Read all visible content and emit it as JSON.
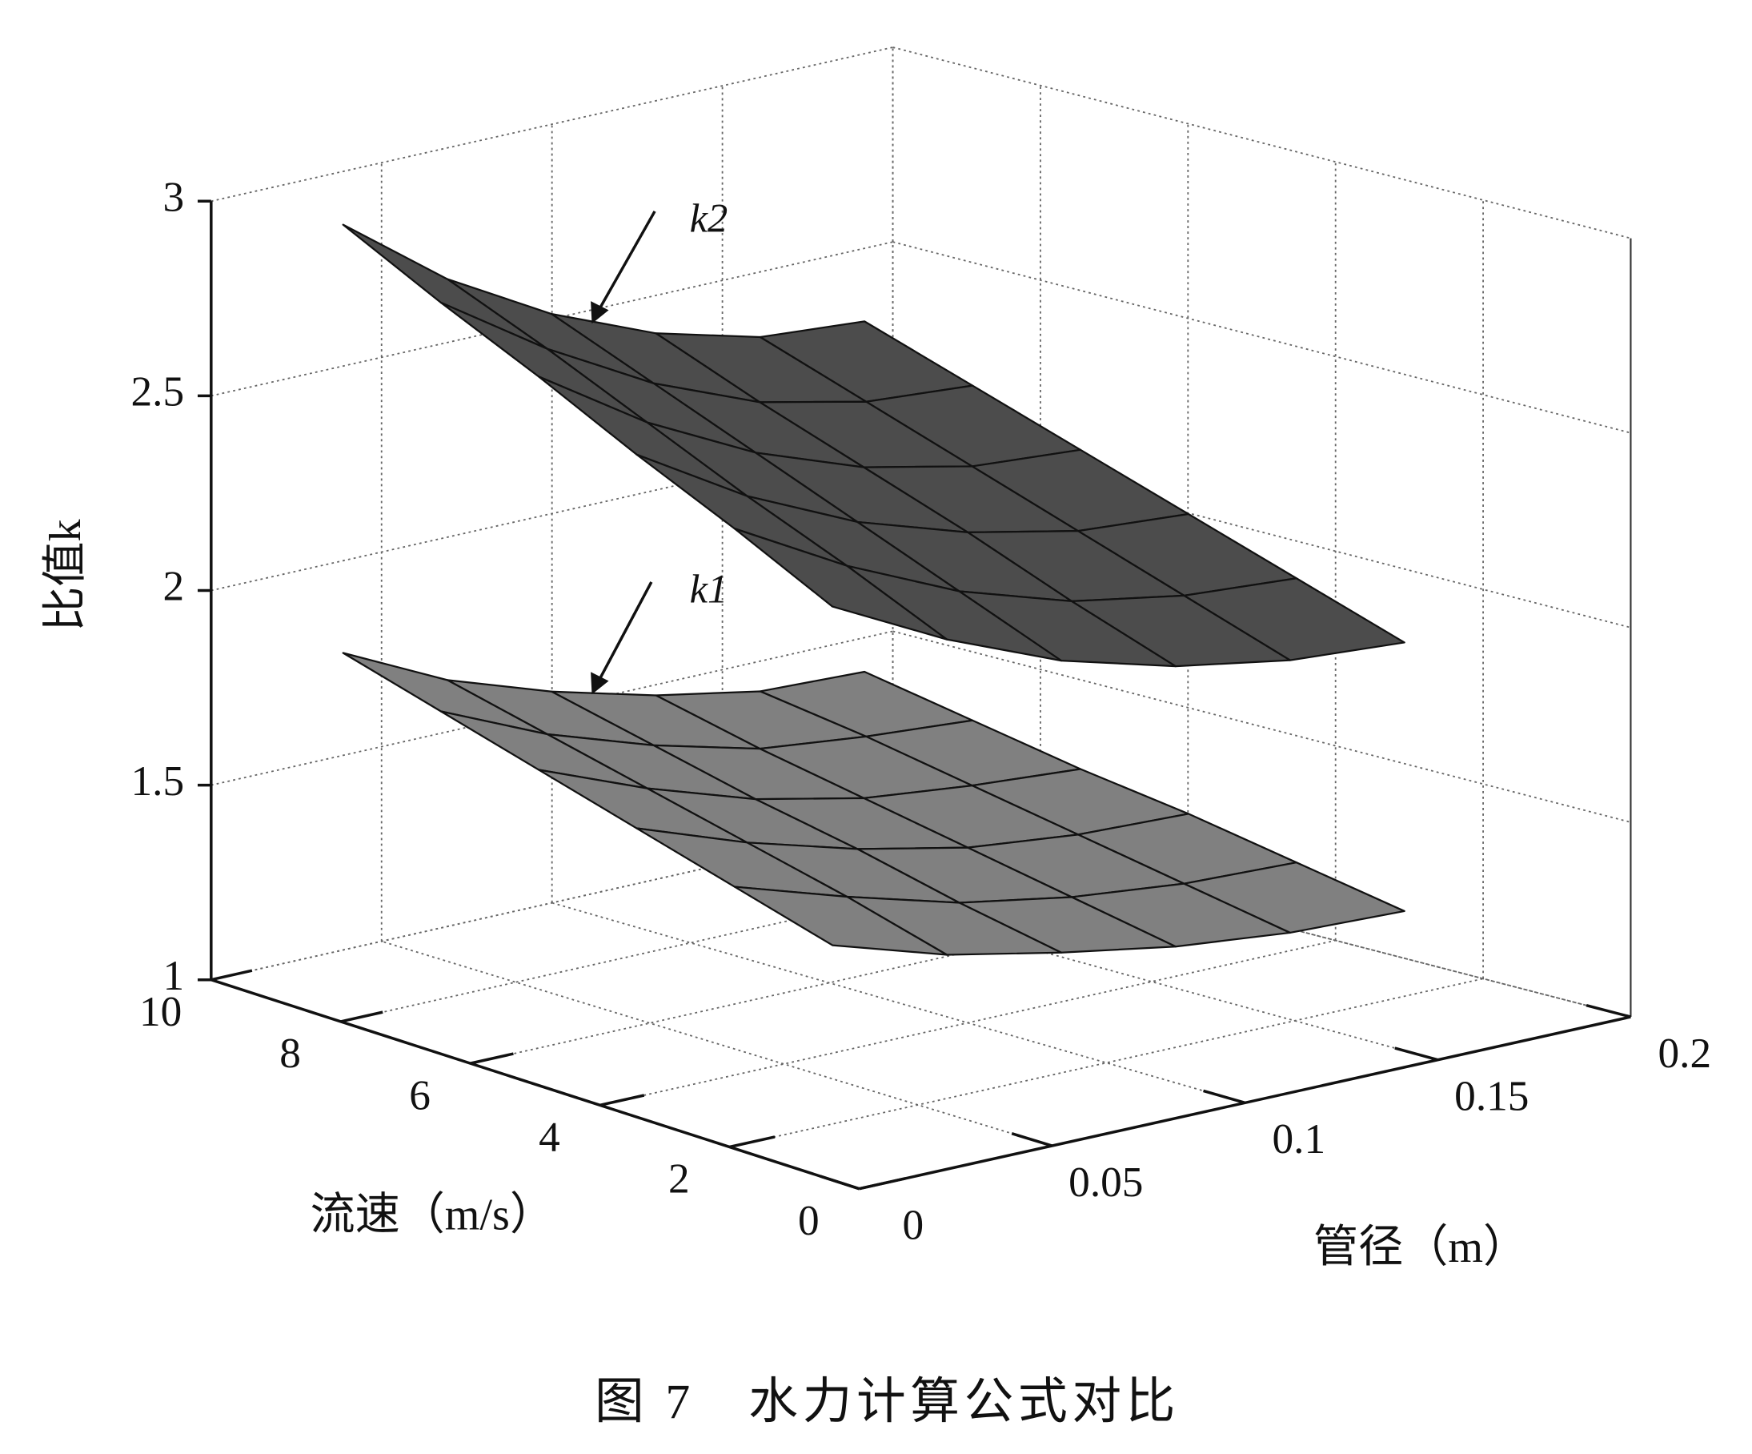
{
  "chart_data": {
    "type": "surface3d",
    "caption": "图 7　水力计算公式对比",
    "xlabel": "管径（m）",
    "ylabel": "流速（m/s）",
    "zlabel": "比值k",
    "xlim": [
      0,
      0.2
    ],
    "xticks": [
      0,
      0.05,
      0.1,
      0.15,
      0.2
    ],
    "ylim": [
      0,
      10
    ],
    "yticks": [
      0,
      2,
      4,
      6,
      8,
      10
    ],
    "zlim": [
      1,
      3
    ],
    "zticks": [
      1,
      1.5,
      2,
      2.5,
      3
    ],
    "grid": true,
    "x": [
      0.01,
      0.04,
      0.07,
      0.1,
      0.13,
      0.16
    ],
    "y": [
      1,
      2.5,
      4,
      5.5,
      7,
      8.5
    ],
    "series": [
      {
        "name": "k1",
        "color": "#808080",
        "values": [
          [
            1.55,
            1.46,
            1.4,
            1.35,
            1.32,
            1.31
          ],
          [
            1.62,
            1.53,
            1.45,
            1.4,
            1.37,
            1.36
          ],
          [
            1.69,
            1.59,
            1.51,
            1.45,
            1.42,
            1.41
          ],
          [
            1.76,
            1.65,
            1.56,
            1.5,
            1.47,
            1.45
          ],
          [
            1.83,
            1.71,
            1.62,
            1.55,
            1.52,
            1.5
          ],
          [
            1.9,
            1.77,
            1.68,
            1.61,
            1.56,
            1.55
          ]
        ]
      },
      {
        "name": "k2",
        "color": "#4c4c4c",
        "values": [
          [
            2.42,
            2.27,
            2.15,
            2.07,
            2.02,
            2.0
          ],
          [
            2.54,
            2.38,
            2.25,
            2.16,
            2.11,
            2.09
          ],
          [
            2.65,
            2.48,
            2.35,
            2.26,
            2.2,
            2.18
          ],
          [
            2.77,
            2.59,
            2.45,
            2.35,
            2.29,
            2.27
          ],
          [
            2.88,
            2.7,
            2.55,
            2.44,
            2.38,
            2.36
          ],
          [
            3.0,
            2.8,
            2.65,
            2.54,
            2.47,
            2.45
          ]
        ]
      }
    ]
  }
}
